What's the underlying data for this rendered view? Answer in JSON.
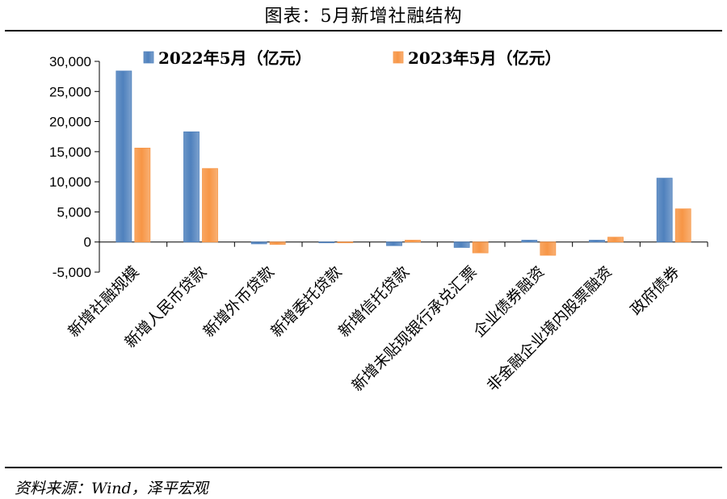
{
  "title": "图表：5月新增社融结构",
  "source": "资料来源：Wind，泽平宏观",
  "chart_data": {
    "type": "bar",
    "categories": [
      "新增社融规模",
      "新增人民币贷款",
      "新增外币贷款",
      "新增委托贷款",
      "新增信托贷款",
      "新增未贴现银行承兑汇票",
      "企业债券融资",
      "非金融企业境内股票融资",
      "政府债券"
    ],
    "series": [
      {
        "name": "2022年5月（亿元）",
        "color": "#4f81bd",
        "values": [
          28400,
          18300,
          -300,
          -100,
          -600,
          -900,
          300,
          300,
          10600
        ]
      },
      {
        "name": "2023年5月（亿元）",
        "color": "#f79646",
        "values": [
          15600,
          12200,
          -400,
          -50,
          300,
          -1800,
          -2200,
          800,
          5500
        ]
      }
    ],
    "ylim": [
      -5000,
      30000
    ],
    "yticks": [
      -5000,
      0,
      5000,
      10000,
      15000,
      20000,
      25000,
      30000
    ],
    "ytick_labels": [
      "-5,000",
      "0",
      "5,000",
      "10,000",
      "15,000",
      "20,000",
      "25,000",
      "30,000"
    ],
    "legend_position": "top"
  }
}
